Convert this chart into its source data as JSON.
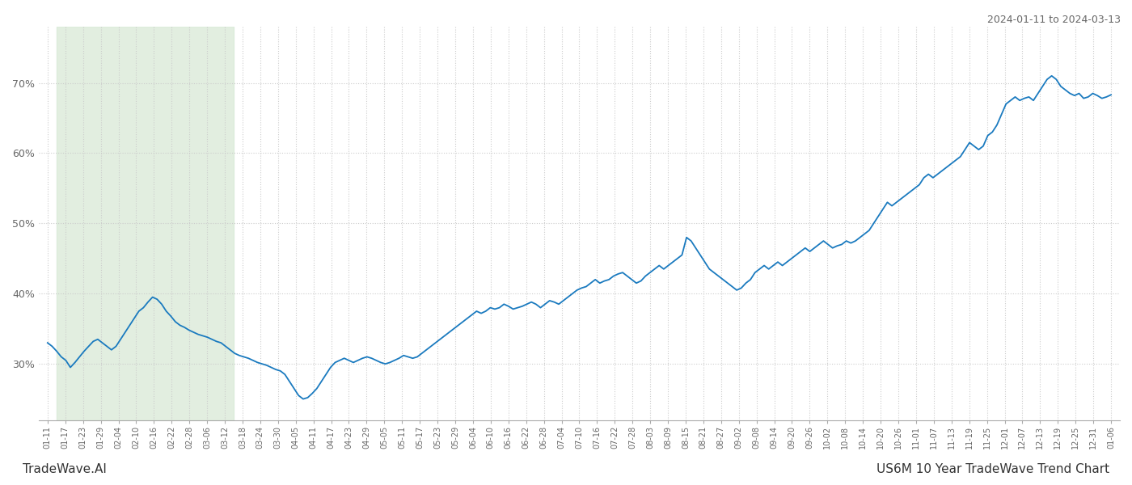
{
  "title_top_right": "2024-01-11 to 2024-03-13",
  "title_bottom_left": "TradeWave.AI",
  "title_bottom_right": "US6M 10 Year TradeWave Trend Chart",
  "background_color": "#ffffff",
  "line_color": "#1a7abf",
  "line_width": 1.3,
  "highlight_color": "#d6e8d4",
  "highlight_alpha": 0.7,
  "ylim": [
    22,
    78
  ],
  "yticks": [
    30,
    40,
    50,
    60,
    70
  ],
  "grid_color": "#cccccc",
  "grid_style": ":",
  "x_labels": [
    "01-11",
    "01-17",
    "01-23",
    "01-29",
    "02-04",
    "02-10",
    "02-16",
    "02-22",
    "02-28",
    "03-06",
    "03-12",
    "03-18",
    "03-24",
    "03-30",
    "04-05",
    "04-11",
    "04-17",
    "04-23",
    "04-29",
    "05-05",
    "05-11",
    "05-17",
    "05-23",
    "05-29",
    "06-04",
    "06-10",
    "06-16",
    "06-22",
    "06-28",
    "07-04",
    "07-10",
    "07-16",
    "07-22",
    "07-28",
    "08-03",
    "08-09",
    "08-15",
    "08-21",
    "08-27",
    "09-02",
    "09-08",
    "09-14",
    "09-20",
    "09-26",
    "10-02",
    "10-08",
    "10-14",
    "10-20",
    "10-26",
    "11-01",
    "11-07",
    "11-13",
    "11-19",
    "11-25",
    "12-01",
    "12-07",
    "12-13",
    "12-19",
    "12-25",
    "12-31",
    "01-06"
  ],
  "highlight_start_label": "01-17",
  "highlight_end_label": "03-12",
  "values": [
    33.0,
    32.5,
    31.8,
    31.0,
    30.5,
    29.5,
    30.2,
    31.0,
    31.8,
    32.5,
    33.2,
    33.5,
    33.0,
    32.5,
    32.0,
    32.5,
    33.5,
    34.5,
    35.5,
    36.5,
    37.5,
    38.0,
    38.8,
    39.5,
    39.2,
    38.5,
    37.5,
    36.8,
    36.0,
    35.5,
    35.2,
    34.8,
    34.5,
    34.2,
    34.0,
    33.8,
    33.5,
    33.2,
    33.0,
    32.5,
    32.0,
    31.5,
    31.2,
    31.0,
    30.8,
    30.5,
    30.2,
    30.0,
    29.8,
    29.5,
    29.2,
    29.0,
    28.5,
    27.5,
    26.5,
    25.5,
    25.0,
    25.2,
    25.8,
    26.5,
    27.5,
    28.5,
    29.5,
    30.2,
    30.5,
    30.8,
    30.5,
    30.2,
    30.5,
    30.8,
    31.0,
    30.8,
    30.5,
    30.2,
    30.0,
    30.2,
    30.5,
    30.8,
    31.2,
    31.0,
    30.8,
    31.0,
    31.5,
    32.0,
    32.5,
    33.0,
    33.5,
    34.0,
    34.5,
    35.0,
    35.5,
    36.0,
    36.5,
    37.0,
    37.5,
    37.2,
    37.5,
    38.0,
    37.8,
    38.0,
    38.5,
    38.2,
    37.8,
    38.0,
    38.2,
    38.5,
    38.8,
    38.5,
    38.0,
    38.5,
    39.0,
    38.8,
    38.5,
    39.0,
    39.5,
    40.0,
    40.5,
    40.8,
    41.0,
    41.5,
    42.0,
    41.5,
    41.8,
    42.0,
    42.5,
    42.8,
    43.0,
    42.5,
    42.0,
    41.5,
    41.8,
    42.5,
    43.0,
    43.5,
    44.0,
    43.5,
    44.0,
    44.5,
    45.0,
    45.5,
    48.0,
    47.5,
    46.5,
    45.5,
    44.5,
    43.5,
    43.0,
    42.5,
    42.0,
    41.5,
    41.0,
    40.5,
    40.8,
    41.5,
    42.0,
    43.0,
    43.5,
    44.0,
    43.5,
    44.0,
    44.5,
    44.0,
    44.5,
    45.0,
    45.5,
    46.0,
    46.5,
    46.0,
    46.5,
    47.0,
    47.5,
    47.0,
    46.5,
    46.8,
    47.0,
    47.5,
    47.2,
    47.5,
    48.0,
    48.5,
    49.0,
    50.0,
    51.0,
    52.0,
    53.0,
    52.5,
    53.0,
    53.5,
    54.0,
    54.5,
    55.0,
    55.5,
    56.5,
    57.0,
    56.5,
    57.0,
    57.5,
    58.0,
    58.5,
    59.0,
    59.5,
    60.5,
    61.5,
    61.0,
    60.5,
    61.0,
    62.5,
    63.0,
    64.0,
    65.5,
    67.0,
    67.5,
    68.0,
    67.5,
    67.8,
    68.0,
    67.5,
    68.5,
    69.5,
    70.5,
    71.0,
    70.5,
    69.5,
    69.0,
    68.5,
    68.2,
    68.5,
    67.8,
    68.0,
    68.5,
    68.2,
    67.8,
    68.0,
    68.3
  ]
}
